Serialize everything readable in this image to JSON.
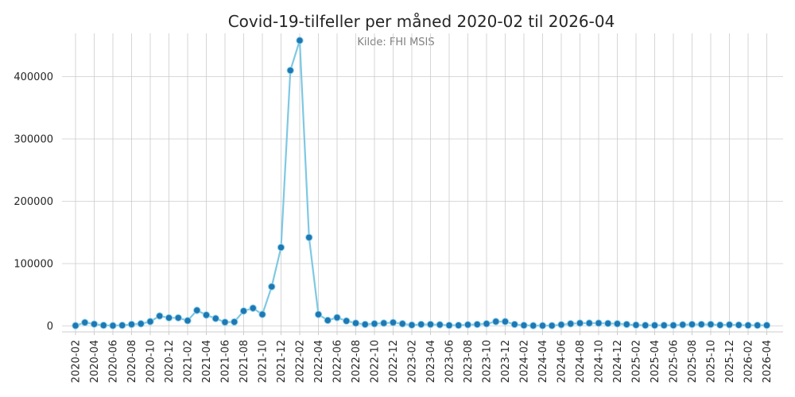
{
  "chart_data": {
    "type": "line",
    "title": "Covid-19-tilfeller per måned 2020-02 til 2026-04",
    "subtitle": "Kilde: FHI MSIS",
    "xlabel": "",
    "ylabel": "",
    "ylim": [
      -9000,
      470000
    ],
    "yticks": [
      0,
      100000,
      200000,
      300000,
      400000
    ],
    "grid": true,
    "line_color": "#7ec8e3",
    "marker_color": "#1f77b4",
    "x": [
      "2020-02",
      "2020-03",
      "2020-04",
      "2020-05",
      "2020-06",
      "2020-07",
      "2020-08",
      "2020-09",
      "2020-10",
      "2020-11",
      "2020-12",
      "2021-01",
      "2021-02",
      "2021-03",
      "2021-04",
      "2021-05",
      "2021-06",
      "2021-07",
      "2021-08",
      "2021-09",
      "2021-10",
      "2021-11",
      "2021-12",
      "2022-01",
      "2022-02",
      "2022-03",
      "2022-04",
      "2022-05",
      "2022-06",
      "2022-07",
      "2022-08",
      "2022-09",
      "2022-10",
      "2022-11",
      "2022-12",
      "2023-01",
      "2023-02",
      "2023-03",
      "2023-04",
      "2023-05",
      "2023-06",
      "2023-07",
      "2023-08",
      "2023-09",
      "2023-10",
      "2023-11",
      "2023-12",
      "2024-01",
      "2024-02",
      "2024-03",
      "2024-04",
      "2024-05",
      "2024-06",
      "2024-07",
      "2024-08",
      "2024-09",
      "2024-10",
      "2024-11",
      "2024-12",
      "2025-01",
      "2025-02",
      "2025-03",
      "2025-04",
      "2025-05",
      "2025-06",
      "2025-07",
      "2025-08",
      "2025-09",
      "2025-10",
      "2025-11",
      "2025-12",
      "2026-01",
      "2026-02",
      "2026-03",
      "2026-04"
    ],
    "xtick_labels": [
      "2020-02",
      "2020-04",
      "2020-06",
      "2020-08",
      "2020-10",
      "2020-12",
      "2021-02",
      "2021-04",
      "2021-06",
      "2021-08",
      "2021-10",
      "2021-12",
      "2022-02",
      "2022-04",
      "2022-06",
      "2022-08",
      "2022-10",
      "2022-12",
      "2023-02",
      "2023-04",
      "2023-06",
      "2023-08",
      "2023-10",
      "2023-12",
      "2024-02",
      "2024-04",
      "2024-06",
      "2024-08",
      "2024-10",
      "2024-12",
      "2025-02",
      "2025-04",
      "2025-06",
      "2025-08",
      "2025-10",
      "2025-12",
      "2026-02",
      "2026-04"
    ],
    "series": [
      {
        "values": [
          500,
          5500,
          3000,
          1000,
          500,
          1000,
          2500,
          3500,
          7000,
          16000,
          13000,
          13000,
          8500,
          25000,
          17500,
          12000,
          6000,
          6500,
          24000,
          28500,
          18500,
          63000,
          126000,
          410000,
          458000,
          142000,
          18500,
          9000,
          13500,
          8000,
          4500,
          2500,
          3500,
          4500,
          5500,
          3500,
          1500,
          2500,
          2500,
          2000,
          1000,
          1000,
          2000,
          2500,
          3500,
          7000,
          7000,
          2500,
          1000,
          500,
          500,
          500,
          2000,
          3500,
          4500,
          4500,
          4500,
          4000,
          3500,
          2500,
          1500,
          1000,
          1000,
          1000,
          1000,
          2000,
          2500,
          2500,
          2500,
          1500,
          2000,
          1500,
          1000,
          1000,
          1000
        ]
      }
    ]
  }
}
